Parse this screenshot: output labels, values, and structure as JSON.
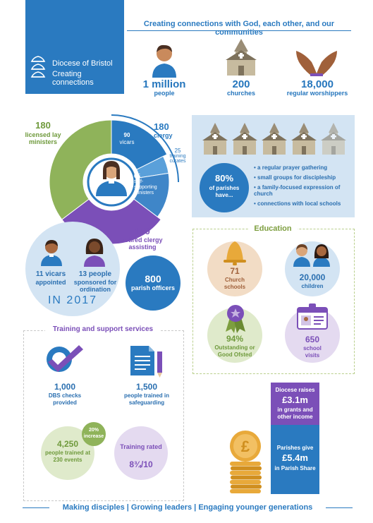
{
  "header": {
    "brand_name": "Diocese of Bristol",
    "brand_tagline": "Creating connections",
    "tagline": "Creating connections with God, each other, and our communities"
  },
  "stats_top": [
    {
      "value": "1 million",
      "label": "people",
      "icon": "person-icon"
    },
    {
      "value": "200",
      "label": "churches",
      "icon": "church-icon"
    },
    {
      "value": "18,000",
      "label": "regular worshippers",
      "icon": "praying-hands-icon"
    }
  ],
  "ministers": {
    "lay": {
      "value": "180",
      "label": "licensed lay ministers"
    },
    "clergy": {
      "value": "180",
      "label": "clergy"
    },
    "vicars": {
      "value": "90",
      "label": "vicars"
    },
    "curates": {
      "value": "25",
      "label": "training curates"
    },
    "self_supporting": {
      "value": "65",
      "label": "self-supporting ministers"
    },
    "retired": {
      "value": "150",
      "label": "retired clergy assisting"
    }
  },
  "year_2017": {
    "vicars": {
      "value": "11 vicars",
      "label": "appointed"
    },
    "sponsored": {
      "value": "13 people",
      "label": "sponsored for ordination"
    },
    "year_label": "IN 2017"
  },
  "parish_officers": {
    "value": "800",
    "label": "parish officers"
  },
  "parishes": {
    "percent": "80%",
    "label": "of parishes have...",
    "bullets": [
      "a regular prayer gathering",
      "small groups for discipleship",
      "a family-focused expression of church",
      "connections with local schools"
    ]
  },
  "education": {
    "title": "Education",
    "schools": {
      "value": "71",
      "label": "Church schools"
    },
    "children": {
      "value": "20,000",
      "label": "children"
    },
    "ofsted": {
      "value": "94%",
      "label": "Outstanding or Good Ofsted"
    },
    "visits": {
      "value": "650",
      "label": "school visits"
    }
  },
  "training": {
    "title": "Training and support services",
    "dbs": {
      "value": "1,000",
      "label": "DBS checks provided"
    },
    "safeguarding": {
      "value": "1,500",
      "label": "people trained in safeguarding"
    },
    "trained": {
      "value": "4,250",
      "label": "people trained at 230 events"
    },
    "increase": {
      "value": "20%",
      "label": "increase"
    },
    "rating": {
      "label": "Training rated",
      "value": "8¾/10"
    }
  },
  "finance": {
    "diocese": {
      "label_top": "Diocese raises",
      "value": "£3.1m",
      "label_bottom": "in grants and other income"
    },
    "parishes": {
      "label_top": "Parishes give",
      "value": "£5.4m",
      "label_bottom": "in Parish Share"
    }
  },
  "footer": {
    "text": "Making disciples | Growing leaders | Engaging younger generations"
  },
  "colors": {
    "blue": "#2a7ac0",
    "green": "#8fb35a",
    "purple": "#7b4fb8",
    "sand": "#f2dcc5",
    "lavender": "#e4daf0",
    "light_blue": "#d3e4f3"
  }
}
